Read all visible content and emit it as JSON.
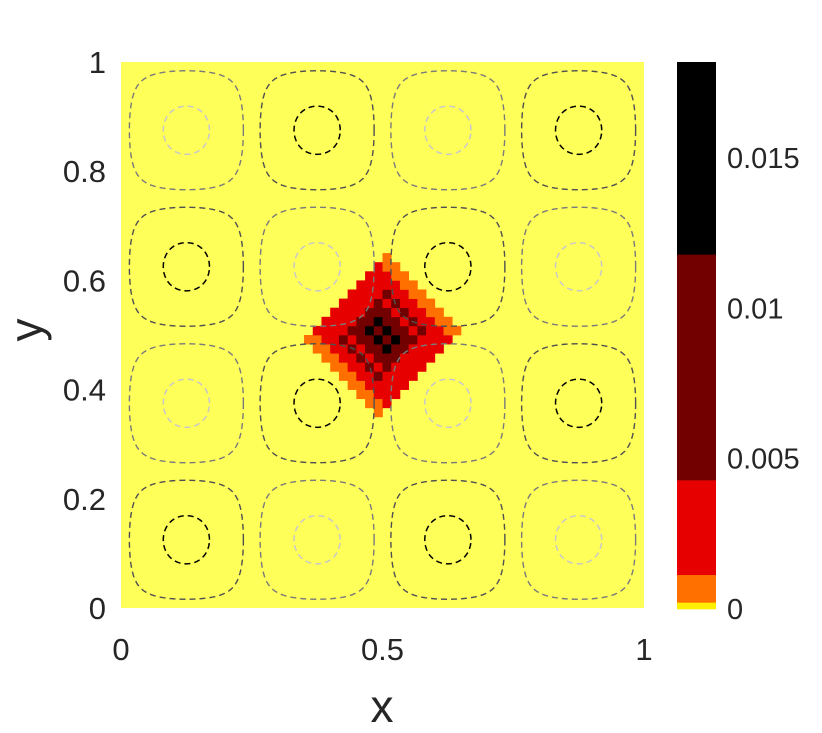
{
  "chart_data": {
    "type": "heatmap",
    "title": "",
    "xlabel": "x",
    "ylabel": "y",
    "xlim": [
      0,
      1
    ],
    "ylim": [
      0,
      1
    ],
    "x_ticks": [
      "0",
      "0.5",
      "1"
    ],
    "y_ticks": [
      "0",
      "0.2",
      "0.4",
      "0.6",
      "0.8",
      "1"
    ],
    "grid": false,
    "background_value": 0,
    "field": {
      "shape": "diamond",
      "center": [
        0.5,
        0.5
      ],
      "half_width": 0.165,
      "peak": 0.0182,
      "grid_cells": 60,
      "pattern": "checkerboard"
    },
    "contours": {
      "function": "sin(4*pi*x)*sin(4*pi*y)",
      "levels_outer": [
        -0.2,
        0.2
      ],
      "levels_inner": [
        -0.85,
        0.85
      ],
      "colors": {
        "positive_inner": "#000000",
        "negative_inner": "#c8c8c8",
        "outer": [
          "#7a7a7a",
          "#505050"
        ]
      },
      "style": "dashed"
    },
    "colorbar": {
      "ticks": [
        "0",
        "0.005",
        "0.01",
        "0.015"
      ],
      "tick_values": [
        0,
        0.005,
        0.01,
        0.015
      ],
      "limits": [
        0,
        0.0182
      ],
      "bands": [
        {
          "from": 0,
          "to": 0.00022,
          "color": "#ffef00"
        },
        {
          "from": 0.00022,
          "to": 0.00114,
          "color": "#ff7000"
        },
        {
          "from": 0.00114,
          "to": 0.00429,
          "color": "#e60000"
        },
        {
          "from": 0.00429,
          "to": 0.0118,
          "color": "#720000"
        },
        {
          "from": 0.0118,
          "to": 0.0182,
          "color": "#000000"
        }
      ]
    },
    "colors": {
      "background": "#ffff5a"
    }
  }
}
